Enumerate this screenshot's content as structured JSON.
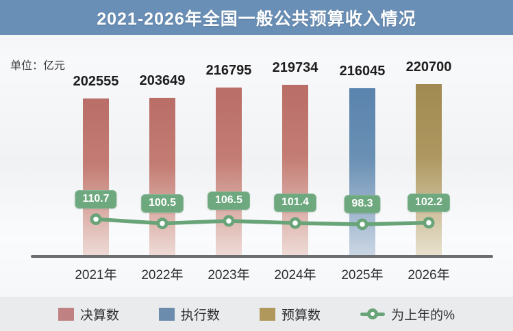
{
  "header": {
    "title": "2021-2026年全国一般公共预算收入情况"
  },
  "unit_label": "单位：亿元",
  "colors": {
    "banner_bg": "#6a8fb6",
    "final_accounts_bar": "#b96e67",
    "execution_bar": "#5a83ad",
    "budget_bar": "#a18a52",
    "line_green": "#68a478",
    "badge_green": "#6da87e",
    "axis_gray": "#6b6e70",
    "legend_bg": "#e9ebed"
  },
  "chart_data": {
    "type": "bar",
    "title": "2021-2026年全国一般公共预算收入情况",
    "unit": "亿元",
    "categories": [
      "2021年",
      "2022年",
      "2023年",
      "2024年",
      "2025年",
      "2026年"
    ],
    "series": [
      {
        "name": "决算数",
        "type": "bar",
        "values": [
          202555,
          203649,
          216795,
          219734,
          null,
          null
        ]
      },
      {
        "name": "执行数",
        "type": "bar",
        "values": [
          null,
          null,
          null,
          null,
          216045,
          null
        ]
      },
      {
        "name": "预算数",
        "type": "bar",
        "values": [
          null,
          null,
          null,
          null,
          null,
          220700
        ]
      },
      {
        "name": "为上年的%",
        "type": "line",
        "values": [
          110.7,
          100.5,
          106.5,
          101.4,
          98.3,
          102.2
        ]
      }
    ],
    "bar_values_by_year": [
      202555,
      203649,
      216795,
      219734,
      216045,
      220700
    ],
    "bar_series_by_year": [
      "决算数",
      "决算数",
      "决算数",
      "决算数",
      "执行数",
      "预算数"
    ],
    "bar_colors_by_year": [
      "#b96e67",
      "#b96e67",
      "#b96e67",
      "#b96e67",
      "#5a83ad",
      "#a18a52"
    ],
    "pct_values_by_year": [
      110.7,
      100.5,
      106.5,
      101.4,
      98.3,
      102.2
    ],
    "ylim": [
      0,
      230000
    ],
    "grid": false,
    "legend_position": "bottom",
    "legend": [
      {
        "label": "决算数",
        "color": "#bf8181",
        "type": "square"
      },
      {
        "label": "执行数",
        "color": "#6b8cad",
        "type": "square"
      },
      {
        "label": "预算数",
        "color": "#b0975c",
        "type": "square"
      },
      {
        "label": "为上年的%",
        "color": "#68a478",
        "type": "line-circle"
      }
    ]
  }
}
